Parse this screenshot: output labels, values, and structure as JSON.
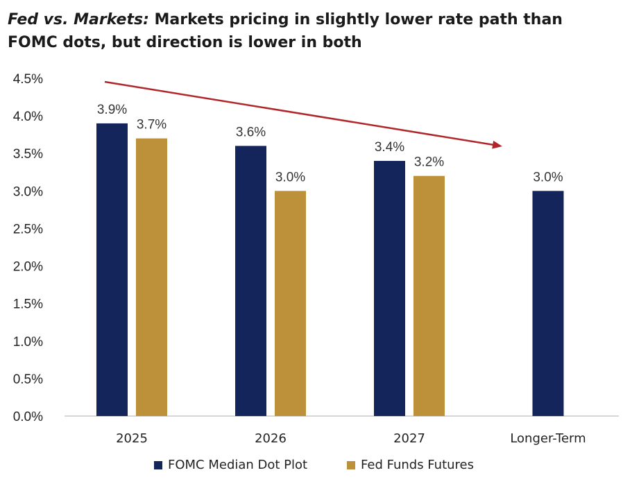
{
  "title": {
    "italic": "Fed vs. Markets:",
    "rest": " Markets pricing in slightly lower rate path than FOMC dots, but direction is lower in both"
  },
  "chart_data": {
    "type": "bar",
    "title": "Fed vs. Markets: Markets pricing in slightly lower rate path than FOMC dots, but direction is lower in both",
    "categories": [
      "2025",
      "2026",
      "2027",
      "Longer-Term"
    ],
    "series": [
      {
        "name": "FOMC Median Dot Plot",
        "values": [
          3.9,
          3.6,
          3.4,
          3.0
        ],
        "labels": [
          "3.9%",
          "3.6%",
          "3.4%",
          "3.0%"
        ],
        "color": "#13255a"
      },
      {
        "name": "Fed Funds Futures",
        "values": [
          3.7,
          3.0,
          3.2,
          null
        ],
        "labels": [
          "3.7%",
          "3.0%",
          "3.2%",
          null
        ],
        "color": "#bd913a"
      }
    ],
    "yticks": [
      "0.0%",
      "0.5%",
      "1.0%",
      "1.5%",
      "2.0%",
      "2.5%",
      "3.0%",
      "3.5%",
      "4.0%",
      "4.5%"
    ],
    "ylim": [
      0,
      4.5
    ],
    "grid": false,
    "legend_position": "bottom",
    "annotation": {
      "type": "downward trend arrow",
      "color": "#b0262a"
    }
  }
}
